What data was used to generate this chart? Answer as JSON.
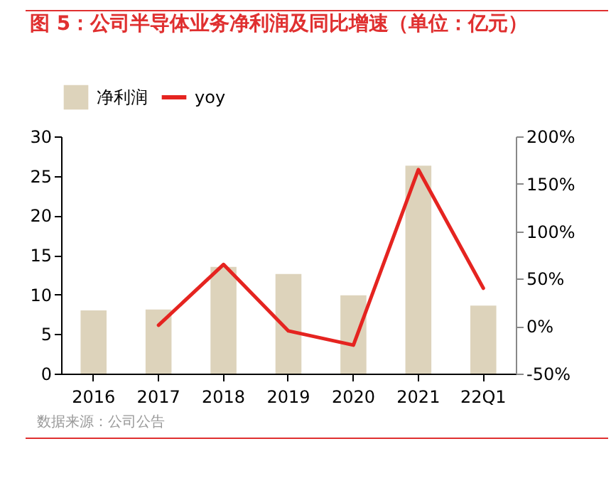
{
  "chart_data": {
    "type": "bar",
    "title": "图 5：公司半导体业务净利润及同比增速（单位：亿元）",
    "annotations": [
      "数据来源：公司公告"
    ],
    "categories": [
      "2016",
      "2017",
      "2018",
      "2019",
      "2020",
      "2021",
      "22Q1"
    ],
    "series": [
      {
        "name": "净利润",
        "color": "#ddd3bb",
        "values": [
          8.0,
          8.1,
          13.5,
          12.6,
          9.9,
          26.3,
          8.6
        ]
      },
      {
        "name": "yoy",
        "type": "line",
        "axis": "y2",
        "color": "#e52420",
        "values": [
          null,
          1,
          65,
          -5,
          -20,
          165,
          40
        ]
      }
    ],
    "ylim": [
      0,
      30
    ],
    "yticks": [
      0,
      5,
      10,
      15,
      20,
      25,
      30
    ],
    "y2lim": [
      -50,
      200
    ],
    "y2ticks": [
      {
        "value": -50,
        "label": "-50%"
      },
      {
        "value": 0,
        "label": "0%"
      },
      {
        "value": 50,
        "label": "50%"
      },
      {
        "value": 100,
        "label": "100%"
      },
      {
        "value": 150,
        "label": "150%"
      },
      {
        "value": 200,
        "label": "200%"
      }
    ],
    "legend": "top",
    "grid": false
  }
}
